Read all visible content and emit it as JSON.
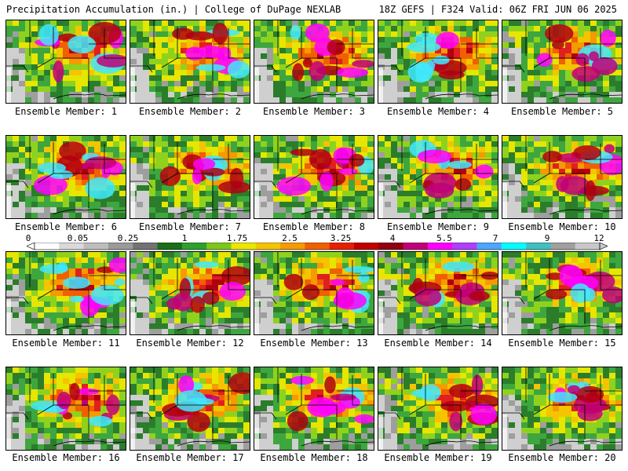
{
  "header": {
    "title": "Precipitation Accumulation (in.) | College of DuPage NEXLAB",
    "valid": "18Z GEFS | F324 Valid: 06Z FRI JUN 06 2025"
  },
  "panels": [
    {
      "caption": "Ensemble Member: 1",
      "max_level": 9
    },
    {
      "caption": "Ensemble Member: 2",
      "max_level": 9
    },
    {
      "caption": "Ensemble Member: 3",
      "max_level": 8
    },
    {
      "caption": "Ensemble Member: 4",
      "max_level": 9
    },
    {
      "caption": "Ensemble Member: 5",
      "max_level": 9
    },
    {
      "caption": "Ensemble Member: 6",
      "max_level": 9
    },
    {
      "caption": "Ensemble Member: 7",
      "max_level": 9
    },
    {
      "caption": "Ensemble Member: 8",
      "max_level": 9
    },
    {
      "caption": "Ensemble Member: 9",
      "max_level": 9
    },
    {
      "caption": "Ensemble Member: 10",
      "max_level": 9
    },
    {
      "caption": "Ensemble Member: 11",
      "max_level": 9
    },
    {
      "caption": "Ensemble Member: 12",
      "max_level": 8
    },
    {
      "caption": "Ensemble Member: 13",
      "max_level": 9
    },
    {
      "caption": "Ensemble Member: 14",
      "max_level": 8
    },
    {
      "caption": "Ensemble Member: 15",
      "max_level": 8
    },
    {
      "caption": "Ensemble Member: 16",
      "max_level": 9
    },
    {
      "caption": "Ensemble Member: 17",
      "max_level": 9
    },
    {
      "caption": "Ensemble Member: 18",
      "max_level": 9
    },
    {
      "caption": "Ensemble Member: 19",
      "max_level": 8
    },
    {
      "caption": "Ensemble Member: 20",
      "max_level": 8
    }
  ],
  "colorbar": {
    "labels": [
      "0",
      "0.05",
      "0.25",
      "1",
      "1.75",
      "2.5",
      "3.25",
      "4",
      "5.5",
      "7",
      "9",
      "12"
    ],
    "colors": [
      "#ffffff",
      "#d9d9d9",
      "#bdbdbd",
      "#9a9a9a",
      "#737373",
      "#1a6e1a",
      "#2ea02e",
      "#7cc81a",
      "#e8e800",
      "#f5c400",
      "#f59a00",
      "#f06000",
      "#e82000",
      "#c00000",
      "#900010",
      "#c00078",
      "#ff00ff",
      "#b040ff",
      "#4da6ff",
      "#00ffff",
      "#40c0c0",
      "#a0a0a0",
      "#c8c8c8"
    ]
  }
}
